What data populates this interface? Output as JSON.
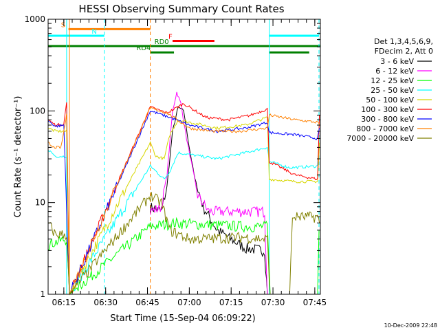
{
  "chart_data": {
    "type": "line",
    "title": "HESSI Observing Summary Count Rates",
    "xlabel": "Start Time (15-Sep-04 06:09:22)",
    "ylabel": "Count Rate (s⁻¹ detector⁻¹)",
    "y_scale": "log",
    "ylim": [
      1,
      1000
    ],
    "y_ticks": [
      "1",
      "10",
      "100",
      "1000"
    ],
    "xlim": [
      "06:09:22",
      "07:47:00"
    ],
    "x_ticks": [
      "06:15",
      "06:30",
      "06:45",
      "07:00",
      "07:15",
      "07:30",
      "07:45"
    ],
    "grid": false,
    "legend_position": "right",
    "legend_header": [
      "Det 1,3,4,5,6,9,",
      "FDecim 2, Att 0"
    ],
    "date_stamp": "10-Dec-2009 22:48",
    "series": [
      {
        "name": "3 - 6 keV",
        "color": "#000000",
        "points": [
          [
            "06:46:00",
            9
          ],
          [
            "06:50:00",
            8
          ],
          [
            "06:52:00",
            15
          ],
          [
            "06:54:00",
            60
          ],
          [
            "06:56:00",
            110
          ],
          [
            "06:58:00",
            100
          ],
          [
            "07:00:00",
            40
          ],
          [
            "07:02:00",
            18
          ],
          [
            "07:05:00",
            9
          ],
          [
            "07:10:00",
            5
          ],
          [
            "07:20:00",
            3.2
          ],
          [
            "07:27:00",
            3
          ],
          [
            "07:28:00",
            1
          ]
        ]
      },
      {
        "name": "6 - 12 keV",
        "color": "#ff00ff",
        "points": [
          [
            "06:46:00",
            8
          ],
          [
            "06:50:00",
            9
          ],
          [
            "06:52:00",
            20
          ],
          [
            "06:54:00",
            100
          ],
          [
            "06:55:30",
            160
          ],
          [
            "06:57:00",
            120
          ],
          [
            "06:59:00",
            50
          ],
          [
            "07:01:00",
            25
          ],
          [
            "07:03:00",
            12
          ],
          [
            "07:07:00",
            8
          ],
          [
            "07:20:00",
            8
          ],
          [
            "07:27:00",
            8
          ],
          [
            "07:28:00",
            1
          ]
        ]
      },
      {
        "name": "12 - 25 keV",
        "color": "#00ff00",
        "points": [
          [
            "06:09:22",
            3.5
          ],
          [
            "06:13:00",
            3.8
          ],
          [
            "06:16:00",
            4
          ],
          [
            "06:17:00",
            1
          ],
          [
            "06:46:00",
            5.5
          ],
          [
            "06:55:00",
            6
          ],
          [
            "07:20:00",
            5.5
          ],
          [
            "07:28:00",
            5.5
          ],
          [
            "07:29:00",
            1
          ],
          [
            "07:46:00",
            1
          ],
          [
            "07:46:30",
            5
          ]
        ]
      },
      {
        "name": "25 - 50 keV",
        "color": "#00ffff",
        "points": [
          [
            "06:09:22",
            38
          ],
          [
            "06:12:00",
            32
          ],
          [
            "06:16:00",
            32
          ],
          [
            "06:17:00",
            1
          ],
          [
            "06:46:00",
            25
          ],
          [
            "06:48:00",
            22
          ],
          [
            "06:51:00",
            18
          ],
          [
            "06:53:00",
            22
          ],
          [
            "06:56:00",
            35
          ],
          [
            "07:10:00",
            30
          ],
          [
            "07:20:00",
            35
          ],
          [
            "07:28:00",
            40
          ],
          [
            "07:28:40",
            28
          ],
          [
            "07:36:00",
            24
          ],
          [
            "07:46:00",
            25
          ],
          [
            "07:46:40",
            55
          ]
        ]
      },
      {
        "name": "50 - 100 keV",
        "color": "#d7d700",
        "points": [
          [
            "06:09:22",
            65
          ],
          [
            "06:12:00",
            60
          ],
          [
            "06:16:00",
            60
          ],
          [
            "06:17:00",
            1
          ],
          [
            "06:46:00",
            45
          ],
          [
            "06:48:00",
            32
          ],
          [
            "06:51:00",
            30
          ],
          [
            "06:53:00",
            55
          ],
          [
            "06:56:00",
            80
          ],
          [
            "07:10:00",
            65
          ],
          [
            "07:20:00",
            70
          ],
          [
            "07:28:00",
            85
          ],
          [
            "07:28:40",
            18
          ],
          [
            "07:37:00",
            17
          ],
          [
            "07:46:00",
            17
          ],
          [
            "07:46:40",
            45
          ]
        ]
      },
      {
        "name": "100 - 300 keV",
        "color": "#ff0000",
        "points": [
          [
            "06:09:22",
            80
          ],
          [
            "06:12:00",
            70
          ],
          [
            "06:15:00",
            72
          ],
          [
            "06:16:00",
            125
          ],
          [
            "06:17:00",
            1
          ],
          [
            "06:46:00",
            110
          ],
          [
            "06:52:00",
            95
          ],
          [
            "06:58:00",
            120
          ],
          [
            "07:06:00",
            85
          ],
          [
            "07:14:00",
            80
          ],
          [
            "07:22:00",
            90
          ],
          [
            "07:28:00",
            105
          ],
          [
            "07:28:40",
            28
          ],
          [
            "07:38:00",
            20
          ],
          [
            "07:46:00",
            18
          ],
          [
            "07:46:40",
            90
          ]
        ]
      },
      {
        "name": "300 - 800 keV",
        "color": "#0000ff",
        "points": [
          [
            "06:09:22",
            78
          ],
          [
            "06:12:00",
            68
          ],
          [
            "06:15:00",
            70
          ],
          [
            "06:17:00",
            1
          ],
          [
            "06:46:00",
            100
          ],
          [
            "06:53:00",
            85
          ],
          [
            "07:00:00",
            70
          ],
          [
            "07:10:00",
            60
          ],
          [
            "07:20:00",
            65
          ],
          [
            "07:28:00",
            75
          ],
          [
            "07:28:40",
            58
          ],
          [
            "07:38:00",
            55
          ],
          [
            "07:46:00",
            50
          ],
          [
            "07:46:40",
            65
          ]
        ]
      },
      {
        "name": "800 - 7000 keV",
        "color": "#ff8000",
        "points": [
          [
            "06:09:22",
            45
          ],
          [
            "06:11:00",
            40
          ],
          [
            "06:14:00",
            40
          ],
          [
            "06:16:00",
            90
          ],
          [
            "06:17:00",
            1
          ],
          [
            "06:46:00",
            108
          ],
          [
            "06:52:00",
            95
          ],
          [
            "07:00:00",
            65
          ],
          [
            "07:08:00",
            60
          ],
          [
            "07:18:00",
            60
          ],
          [
            "07:28:00",
            65
          ],
          [
            "07:28:40",
            90
          ],
          [
            "07:38:00",
            80
          ],
          [
            "07:46:00",
            75
          ],
          [
            "07:46:40",
            70
          ]
        ]
      },
      {
        "name": "7000 - 20000 keV",
        "color": "#808000",
        "points": [
          [
            "06:09:22",
            6
          ],
          [
            "06:12:00",
            4.5
          ],
          [
            "06:16:00",
            4.5
          ],
          [
            "06:17:00",
            1
          ],
          [
            "06:46:00",
            12
          ],
          [
            "06:50:00",
            10
          ],
          [
            "06:53:00",
            5
          ],
          [
            "07:00:00",
            4
          ],
          [
            "07:20:00",
            4.2
          ],
          [
            "07:28:00",
            4
          ],
          [
            "07:29:00",
            1
          ],
          [
            "07:36:00",
            1
          ],
          [
            "07:37:00",
            7
          ],
          [
            "07:46:00",
            7
          ],
          [
            "07:46:40",
            6
          ]
        ]
      }
    ],
    "flag_bars": [
      {
        "label": "S",
        "color": "#ff8000",
        "y": 780,
        "from": "06:16:40",
        "to": "06:46:00",
        "label_at": "06:14:00"
      },
      {
        "label": "N",
        "color": "#00ffff",
        "y": 660,
        "from": "06:09:22",
        "to": "06:29:30",
        "label_at": "06:25:00"
      },
      {
        "label": "",
        "color": "#00ffff",
        "y": 660,
        "from": "07:28:40",
        "to": "07:46:30",
        "label_at": null
      },
      {
        "label": "F",
        "color": "#ff0000",
        "y": 580,
        "from": "06:54:00",
        "to": "07:09:00",
        "label_at": "06:52:30"
      },
      {
        "label": "RD0",
        "color": "#008000",
        "y": 510,
        "from": "06:09:22",
        "to": "07:47:00",
        "label_at": "06:47:30"
      },
      {
        "label": "RD4",
        "color": "#008000",
        "y": 435,
        "from": "06:46:00",
        "to": "06:54:30",
        "label_at": "06:41:00"
      },
      {
        "label": "",
        "color": "#008000",
        "y": 435,
        "from": "07:28:40",
        "to": "07:43:00",
        "label_at": null
      }
    ],
    "vertical_markers": [
      {
        "time": "06:17:00",
        "color": "#ff8000",
        "style": "solid"
      },
      {
        "time": "06:16:00",
        "color": "#00ffff",
        "style": "solid"
      },
      {
        "time": "06:29:30",
        "color": "#00ffff",
        "style": "dashed"
      },
      {
        "time": "06:46:00",
        "color": "#ff8000",
        "style": "dashed"
      },
      {
        "time": "07:28:40",
        "color": "#00ffff",
        "style": "solid"
      },
      {
        "time": "07:46:30",
        "color": "#00ffff",
        "style": "dashed"
      }
    ]
  }
}
